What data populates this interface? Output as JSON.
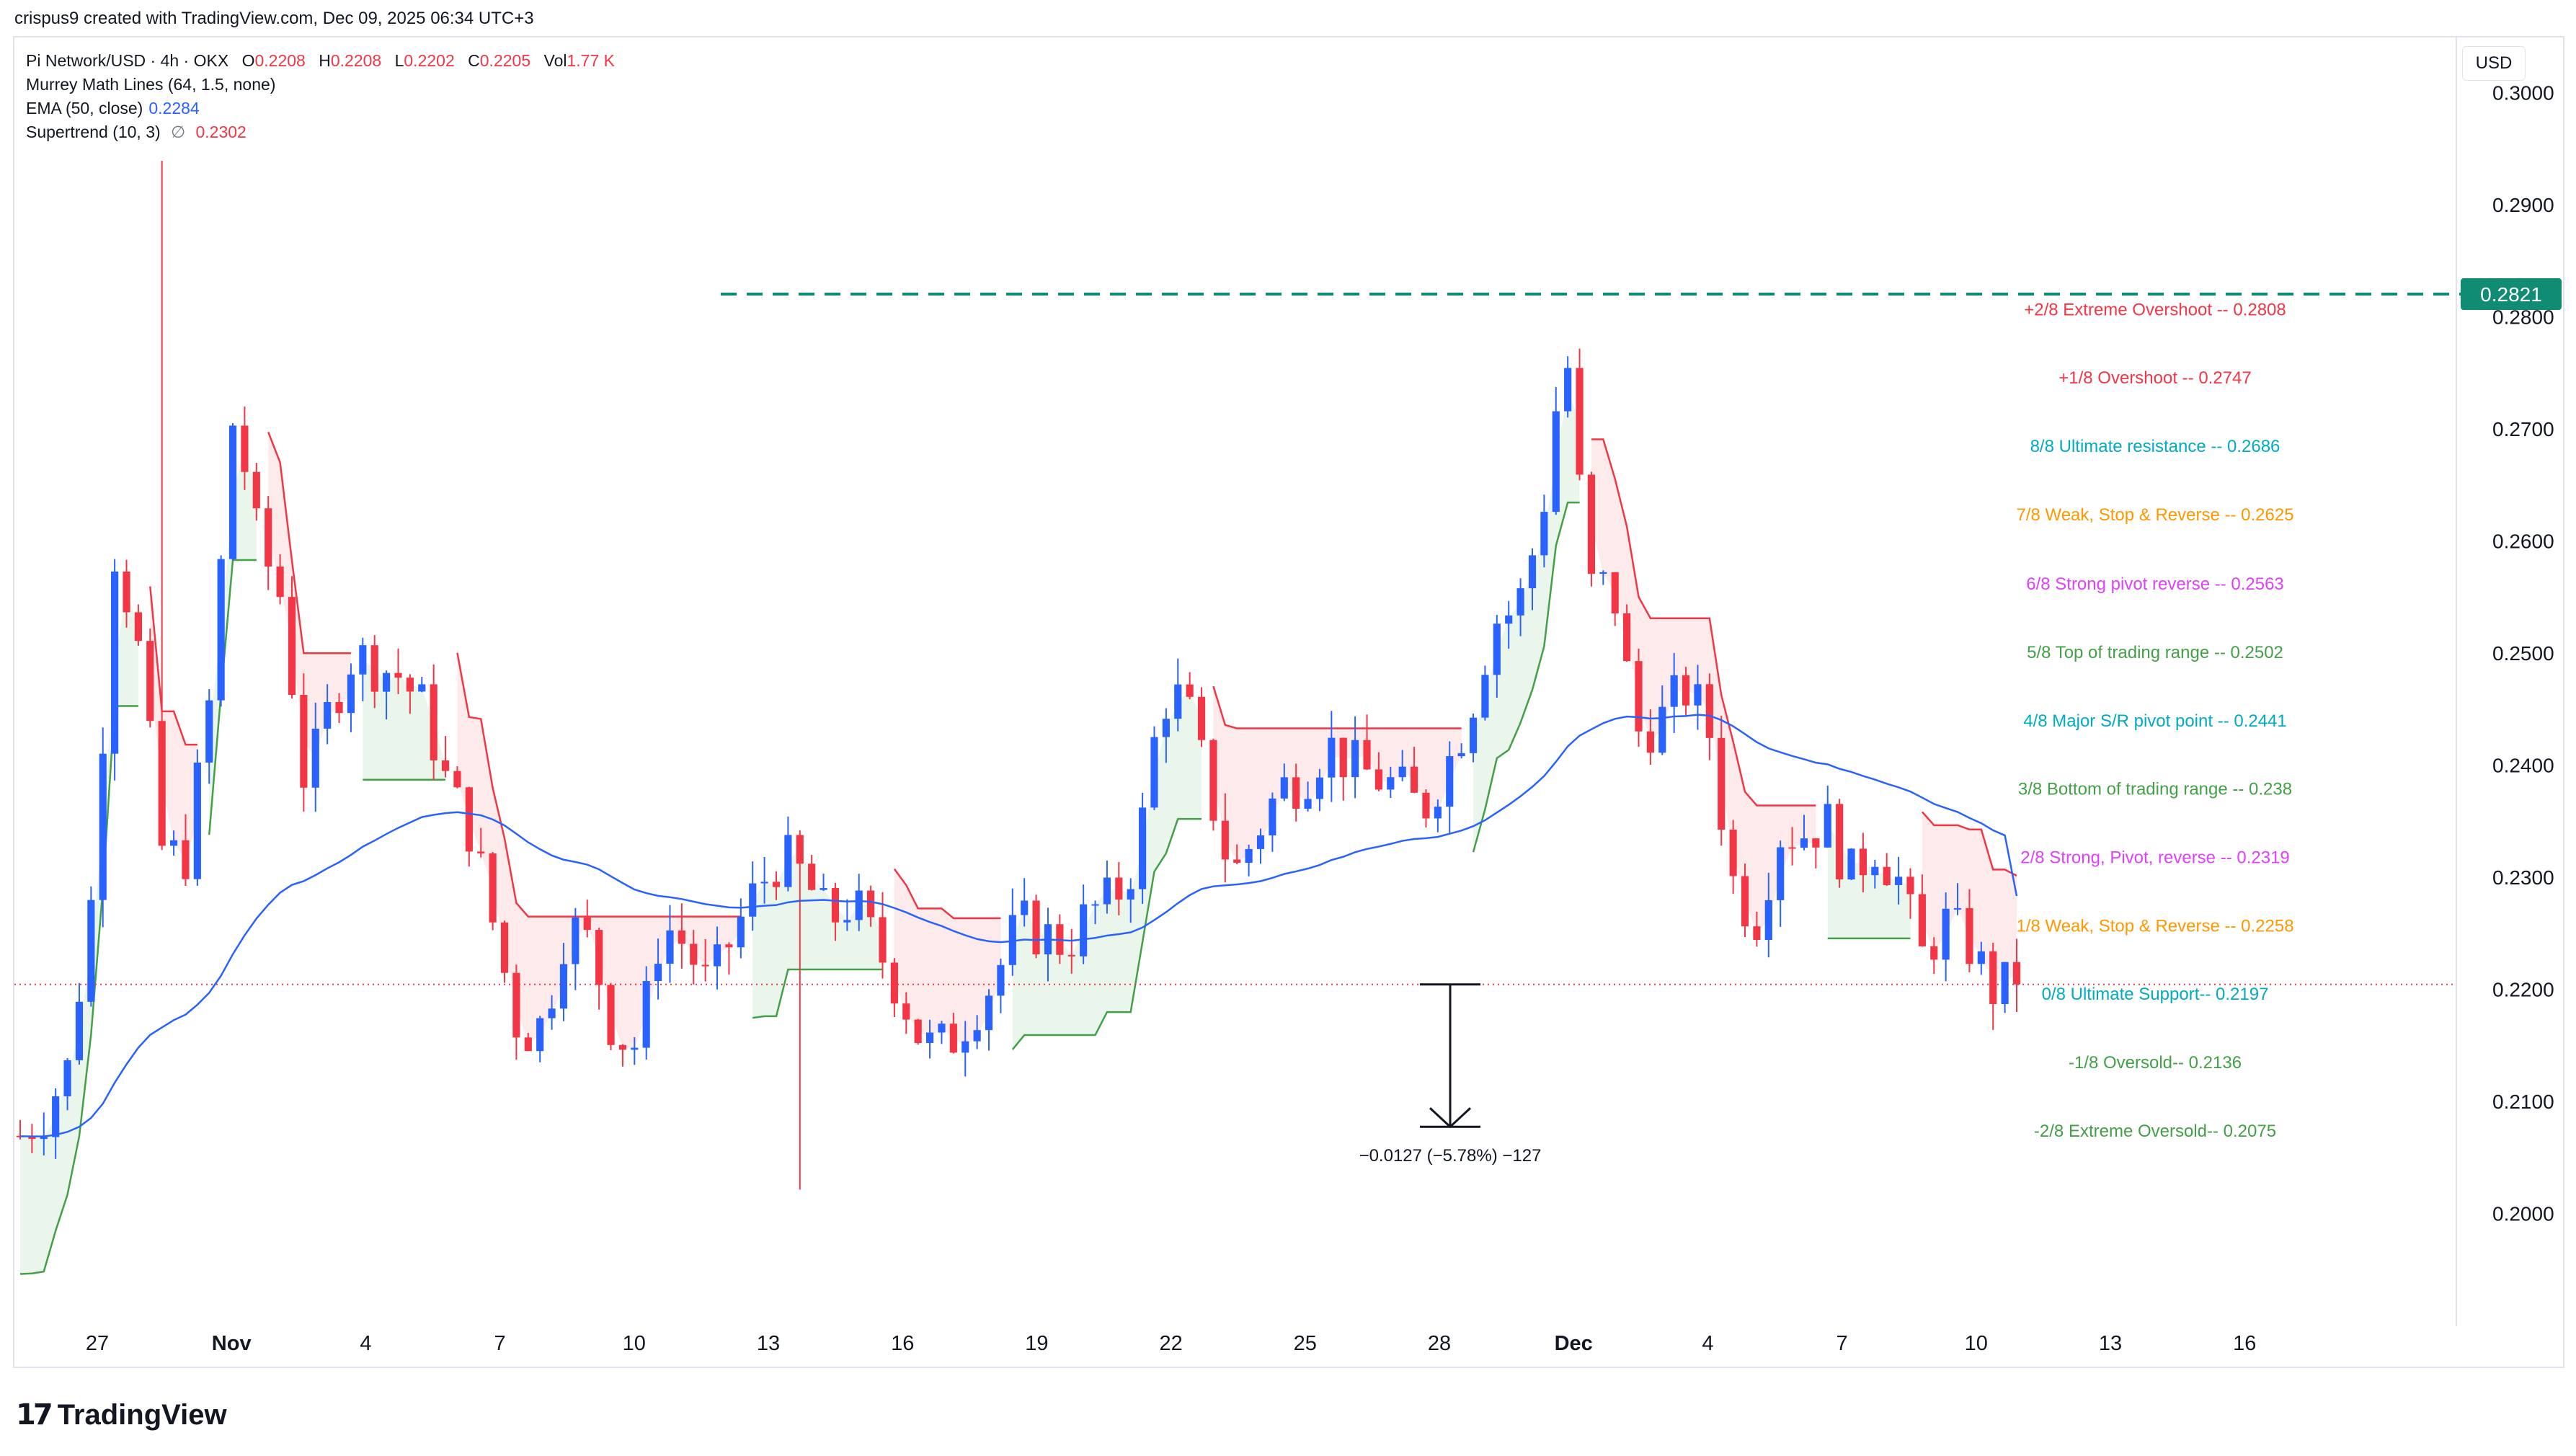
{
  "header": {
    "attribution": "crispus9 created with TradingView.com, Dec 09, 2025 06:34 UTC+3"
  },
  "legend": {
    "symbol": "Pi Network/USD · 4h · OKX",
    "ohlc": [
      {
        "k": "O",
        "v": "0.2208"
      },
      {
        "k": "H",
        "v": "0.2208"
      },
      {
        "k": "L",
        "v": "0.2202"
      },
      {
        "k": "C",
        "v": "0.2205"
      },
      {
        "k": "Vol",
        "v": "1.77 K"
      }
    ],
    "murrey": "Murrey Math Lines (64, 1.5, none)",
    "ema_label": "EMA (50, close)",
    "ema_value": "0.2284",
    "supertrend_label": "Supertrend (10, 3)",
    "supertrend_icon": "∅",
    "supertrend_value": "0.2302"
  },
  "axis": {
    "currency": "USD"
  },
  "brand": {
    "name": "TradingView"
  },
  "colors": {
    "up": "#2962ff",
    "down": "#f23645",
    "ema": "#2962ff",
    "st_up_line": "#43a047",
    "st_down_line": "#f23645",
    "st_up_fill": "#e8f5e9",
    "st_down_fill": "#fde8e8",
    "target": "#0f8c73",
    "price_line": "#f23645"
  },
  "chart_data": {
    "type": "candlestick",
    "ylim": [
      0.19,
      0.305
    ],
    "y_ticks": [
      "0.3000",
      "0.2900",
      "0.2800",
      "0.2700",
      "0.2600",
      "0.2500",
      "0.2400",
      "0.2300",
      "0.2200",
      "0.2100",
      "0.2000"
    ],
    "x_ticks": [
      {
        "label": "27",
        "bold": false
      },
      {
        "label": "Nov",
        "bold": true
      },
      {
        "label": "4",
        "bold": false
      },
      {
        "label": "7",
        "bold": false
      },
      {
        "label": "10",
        "bold": false
      },
      {
        "label": "13",
        "bold": false
      },
      {
        "label": "16",
        "bold": false
      },
      {
        "label": "19",
        "bold": false
      },
      {
        "label": "22",
        "bold": false
      },
      {
        "label": "25",
        "bold": false
      },
      {
        "label": "28",
        "bold": false
      },
      {
        "label": "Dec",
        "bold": true
      },
      {
        "label": "4",
        "bold": false
      },
      {
        "label": "7",
        "bold": false
      },
      {
        "label": "10",
        "bold": false
      },
      {
        "label": "13",
        "bold": false
      },
      {
        "label": "16",
        "bold": false
      }
    ],
    "price_path": [
      [
        0.207,
        0.2065
      ],
      [
        0.209,
        0.211
      ],
      [
        0.213,
        0.226
      ],
      [
        0.228,
        0.288
      ],
      [
        0.26,
        0.258
      ],
      [
        0.25,
        0.23
      ],
      [
        0.232,
        0.228
      ],
      [
        0.232,
        0.243
      ],
      [
        0.246,
        0.27
      ],
      [
        0.272,
        0.265
      ],
      [
        0.26,
        0.25
      ],
      [
        0.255,
        0.238
      ],
      [
        0.238,
        0.243
      ],
      [
        0.245,
        0.248
      ],
      [
        0.25,
        0.247
      ],
      [
        0.249,
        0.251
      ],
      [
        0.248,
        0.244
      ],
      [
        0.245,
        0.242
      ],
      [
        0.238,
        0.233
      ],
      [
        0.234,
        0.224
      ],
      [
        0.225,
        0.218
      ],
      [
        0.216,
        0.214
      ],
      [
        0.217,
        0.221
      ],
      [
        0.226,
        0.229
      ],
      [
        0.224,
        0.218
      ],
      [
        0.216,
        0.214
      ],
      [
        0.215,
        0.224
      ],
      [
        0.226,
        0.228
      ],
      [
        0.224,
        0.223
      ],
      [
        0.22,
        0.222
      ],
      [
        0.225,
        0.228
      ],
      [
        0.229,
        0.23
      ],
      [
        0.232,
        0.233
      ],
      [
        0.23,
        0.229
      ],
      [
        0.226,
        0.224
      ],
      [
        0.228,
        0.227
      ],
      [
        0.224,
        0.221
      ],
      [
        0.22,
        0.218
      ],
      [
        0.215,
        0.213
      ],
      [
        0.215,
        0.217
      ],
      [
        0.218,
        0.219
      ],
      [
        0.221,
        0.224
      ],
      [
        0.226,
        0.227
      ],
      [
        0.225,
        0.222
      ],
      [
        0.224,
        0.226
      ],
      [
        0.227,
        0.227
      ],
      [
        0.228,
        0.227
      ],
      [
        0.232,
        0.24
      ],
      [
        0.246,
        0.252
      ],
      [
        0.246,
        0.24
      ],
      [
        0.238,
        0.232
      ],
      [
        0.23,
        0.23
      ],
      [
        0.234,
        0.236
      ],
      [
        0.238,
        0.241
      ],
      [
        0.239,
        0.24
      ],
      [
        0.242,
        0.243
      ],
      [
        0.24,
        0.238
      ],
      [
        0.239,
        0.237
      ],
      [
        0.238,
        0.237
      ],
      [
        0.236,
        0.238
      ],
      [
        0.24,
        0.24
      ],
      [
        0.245,
        0.247
      ],
      [
        0.253,
        0.256
      ],
      [
        0.254,
        0.255
      ],
      [
        0.262,
        0.268
      ],
      [
        0.278,
        0.262
      ],
      [
        0.256,
        0.256
      ],
      [
        0.256,
        0.248
      ],
      [
        0.243,
        0.242
      ],
      [
        0.244,
        0.245
      ],
      [
        0.247,
        0.247
      ],
      [
        0.244,
        0.238
      ],
      [
        0.23,
        0.224
      ],
      [
        0.226,
        0.23
      ],
      [
        0.234,
        0.235
      ],
      [
        0.234,
        0.232
      ],
      [
        0.235,
        0.234
      ],
      [
        0.23,
        0.231
      ],
      [
        0.233,
        0.231
      ],
      [
        0.23,
        0.227
      ],
      [
        0.223,
        0.223
      ],
      [
        0.226,
        0.225
      ],
      [
        0.224,
        0.222
      ],
      [
        0.22,
        0.221
      ],
      [
        0.2205,
        0.2205
      ]
    ],
    "price_bounds": [
      0.2022,
      0.294
    ],
    "ema_last": 0.2284,
    "supertrend_last": 0.2302,
    "current_price": 0.2205,
    "target_level": {
      "value": 0.2821,
      "label": "0.2821"
    },
    "murrey_levels": [
      {
        "label": "+2/8 Extreme Overshoot --  0.2808",
        "value": 0.2808,
        "color": "#f23645"
      },
      {
        "label": "+1/8 Overshoot --  0.2747",
        "value": 0.2747,
        "color": "#f23645"
      },
      {
        "label": "8/8 Ultimate resistance --  0.2686",
        "value": 0.2686,
        "color": "#00acc1"
      },
      {
        "label": "7/8 Weak, Stop & Reverse --  0.2625",
        "value": 0.2625,
        "color": "#ff9800"
      },
      {
        "label": "6/8 Strong pivot reverse --  0.2563",
        "value": 0.2563,
        "color": "#e040fb"
      },
      {
        "label": "5/8 Top of trading range --  0.2502",
        "value": 0.2502,
        "color": "#43a047"
      },
      {
        "label": "4/8 Major S/R pivot point --  0.2441",
        "value": 0.2441,
        "color": "#00acc1"
      },
      {
        "label": "3/8 Bottom of trading range --  0.238",
        "value": 0.238,
        "color": "#43a047"
      },
      {
        "label": "2/8 Strong, Pivot, reverse --  0.2319",
        "value": 0.2319,
        "color": "#e040fb"
      },
      {
        "label": "1/8 Weak, Stop & Reverse --  0.2258",
        "value": 0.2258,
        "color": "#ff9800"
      },
      {
        "label": "0/8 Ultimate Support--  0.2197",
        "value": 0.2197,
        "color": "#00acc1"
      },
      {
        "label": "-1/8 Oversold--  0.2136",
        "value": 0.2136,
        "color": "#43a047"
      },
      {
        "label": "-2/8 Extreme Oversold--  0.2075",
        "value": 0.2075,
        "color": "#43a047"
      }
    ],
    "measure": {
      "from": 0.2205,
      "to": 0.2078,
      "label": "−0.0127 (−5.78%) −127"
    }
  }
}
